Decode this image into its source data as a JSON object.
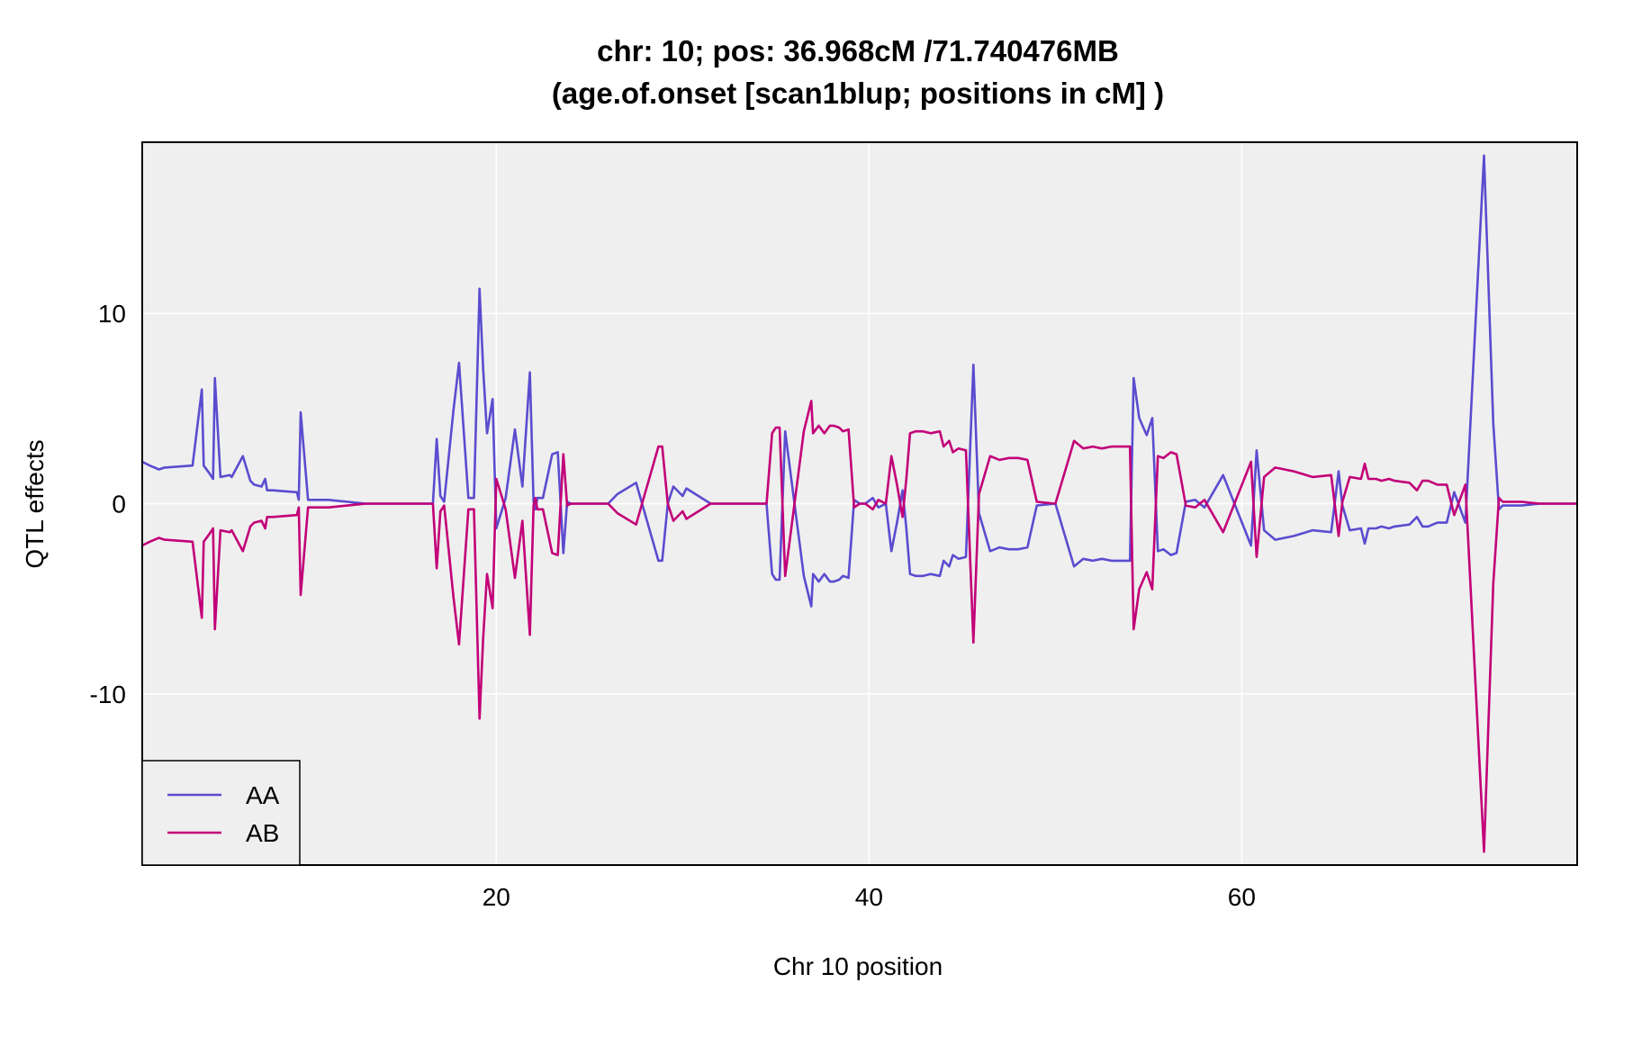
{
  "chart_data": {
    "type": "line",
    "title_line1": "chr: 10; pos: 36.968cM /71.740476MB",
    "title_line2": "(age.of.onset [scan1blup; positions in cM] )",
    "xlabel": "Chr 10 position",
    "ylabel": "QTL effects",
    "xlim": [
      1,
      78
    ],
    "ylim": [
      -19,
      19
    ],
    "xticks": [
      20,
      40,
      60
    ],
    "yticks": [
      -10,
      0,
      10
    ],
    "grid": true,
    "legend_position": "bottom-left",
    "background": "#efefef",
    "series": [
      {
        "name": "AA",
        "color": "#5b4ccf",
        "x": [
          1.0,
          1.4,
          1.9,
          2.2,
          3.7,
          4.2,
          4.3,
          4.6,
          4.8,
          4.9,
          5.2,
          5.7,
          5.8,
          6.4,
          6.8,
          7.0,
          7.4,
          7.6,
          7.7,
          7.8,
          7.8,
          8.0,
          9.3,
          9.4,
          9.5,
          9.9,
          10.5,
          11.0,
          12.0,
          13.0,
          14.0,
          15.0,
          16.0,
          16.4,
          16.6,
          16.8,
          17.0,
          17.2,
          17.7,
          18.0,
          18.5,
          18.8,
          19.1,
          19.3,
          19.5,
          19.8,
          20.0,
          20.5,
          21.0,
          21.4,
          21.8,
          22.0,
          22.1,
          22.2,
          22.5,
          23.0,
          23.3,
          23.6,
          23.8,
          24.0,
          26.0,
          26.5,
          27.5,
          28.7,
          28.9,
          29.2,
          29.5,
          30.0,
          30.2,
          31.5,
          34.5,
          34.8,
          35.0,
          35.2,
          35.5,
          36.5,
          36.9,
          37.0,
          37.3,
          37.6,
          37.9,
          38.1,
          38.4,
          38.6,
          38.9,
          39.2,
          39.5,
          39.8,
          40.2,
          40.5,
          40.9,
          41.2,
          41.5,
          41.8,
          42.0,
          42.2,
          42.5,
          42.9,
          43.3,
          43.8,
          44.0,
          44.2,
          44.3,
          44.5,
          44.8,
          45.2,
          45.6,
          45.9,
          46.5,
          47.0,
          47.5,
          48.0,
          48.5,
          49.0,
          50.0,
          51.0,
          51.5,
          52.0,
          52.5,
          53.0,
          54.0,
          54.2,
          54.5,
          54.9,
          55.2,
          55.5,
          55.8,
          56.2,
          56.5,
          57.0,
          57.5,
          58.0,
          59.0,
          60.5,
          60.8,
          61.2,
          61.8,
          62.8,
          63.8,
          64.8,
          65.2,
          65.4,
          65.8,
          66.4,
          66.6,
          66.8,
          67.2,
          67.5,
          67.9,
          68.2,
          69.0,
          69.4,
          69.7,
          70.0,
          70.5,
          71.0,
          71.4,
          72.0,
          73.0,
          73.5,
          73.8,
          74.0,
          75.0,
          76.0,
          77.0,
          78.0
        ],
        "y": [
          2.2,
          2.0,
          1.8,
          1.9,
          2.0,
          6.0,
          2.0,
          1.6,
          1.3,
          6.6,
          1.4,
          1.5,
          1.4,
          2.5,
          1.2,
          1.0,
          0.9,
          1.3,
          0.7,
          0.7,
          0.7,
          0.7,
          0.6,
          0.2,
          4.8,
          0.2,
          0.2,
          0.2,
          0.1,
          0.0,
          0.0,
          0.0,
          0.0,
          0.0,
          0.0,
          3.4,
          0.4,
          0.1,
          4.9,
          7.4,
          0.3,
          0.3,
          11.3,
          7.0,
          3.7,
          5.5,
          -1.3,
          0.3,
          3.9,
          0.9,
          6.9,
          0.1,
          -0.3,
          0.3,
          0.3,
          2.6,
          2.7,
          -2.6,
          0.1,
          0.0,
          0.0,
          0.5,
          1.1,
          -3.0,
          -3.0,
          0.0,
          0.9,
          0.4,
          0.8,
          0.0,
          0.0,
          -3.7,
          -4.0,
          -4.0,
          3.8,
          -3.8,
          -5.4,
          -3.7,
          -4.1,
          -3.7,
          -4.1,
          -4.1,
          -4.0,
          -3.8,
          -3.9,
          0.2,
          0.0,
          0.0,
          0.3,
          -0.2,
          0.0,
          -2.5,
          -1.0,
          0.7,
          -1.3,
          -3.7,
          -3.8,
          -3.8,
          -3.7,
          -3.8,
          -3.0,
          -3.2,
          -3.3,
          -2.7,
          -2.9,
          -2.8,
          7.3,
          -0.5,
          -2.5,
          -2.3,
          -2.4,
          -2.4,
          -2.3,
          -0.1,
          0.0,
          -3.3,
          -2.9,
          -3.0,
          -2.9,
          -3.0,
          -3.0,
          6.6,
          4.5,
          3.6,
          4.5,
          -2.5,
          -2.4,
          -2.7,
          -2.6,
          0.1,
          0.2,
          -0.2,
          1.5,
          -2.2,
          2.8,
          -1.4,
          -1.9,
          -1.7,
          -1.4,
          -1.5,
          1.7,
          -0.1,
          -1.4,
          -1.3,
          -2.1,
          -1.3,
          -1.3,
          -1.2,
          -1.3,
          -1.2,
          -1.1,
          -0.7,
          -1.2,
          -1.2,
          -1.0,
          -1.0,
          0.6,
          -1.0,
          18.3,
          4.2,
          -0.3,
          -0.1,
          -0.1,
          0.0,
          0.0,
          0.0
        ]
      },
      {
        "name": "AB",
        "color": "#c20078",
        "x": [
          1.0,
          1.4,
          1.9,
          2.2,
          3.7,
          4.2,
          4.3,
          4.6,
          4.8,
          4.9,
          5.2,
          5.7,
          5.8,
          6.4,
          6.8,
          7.0,
          7.4,
          7.6,
          7.7,
          7.8,
          7.8,
          8.0,
          9.3,
          9.4,
          9.5,
          9.9,
          10.5,
          11.0,
          12.0,
          13.0,
          14.0,
          15.0,
          16.0,
          16.4,
          16.6,
          16.8,
          17.0,
          17.2,
          17.7,
          18.0,
          18.5,
          18.8,
          19.1,
          19.3,
          19.5,
          19.8,
          20.0,
          20.5,
          21.0,
          21.4,
          21.8,
          22.0,
          22.1,
          22.2,
          22.5,
          23.0,
          23.3,
          23.6,
          23.8,
          24.0,
          26.0,
          26.5,
          27.5,
          28.7,
          28.9,
          29.2,
          29.5,
          30.0,
          30.2,
          31.5,
          34.5,
          34.8,
          35.0,
          35.2,
          35.5,
          36.5,
          36.9,
          37.0,
          37.3,
          37.6,
          37.9,
          38.1,
          38.4,
          38.6,
          38.9,
          39.2,
          39.5,
          39.8,
          40.2,
          40.5,
          40.9,
          41.2,
          41.5,
          41.8,
          42.0,
          42.2,
          42.5,
          42.9,
          43.3,
          43.8,
          44.0,
          44.2,
          44.3,
          44.5,
          44.8,
          45.2,
          45.6,
          45.9,
          46.5,
          47.0,
          47.5,
          48.0,
          48.5,
          49.0,
          50.0,
          51.0,
          51.5,
          52.0,
          52.5,
          53.0,
          54.0,
          54.2,
          54.5,
          54.9,
          55.2,
          55.5,
          55.8,
          56.2,
          56.5,
          57.0,
          57.5,
          58.0,
          59.0,
          60.5,
          60.8,
          61.2,
          61.8,
          62.8,
          63.8,
          64.8,
          65.2,
          65.4,
          65.8,
          66.4,
          66.6,
          66.8,
          67.2,
          67.5,
          67.9,
          68.2,
          69.0,
          69.4,
          69.7,
          70.0,
          70.5,
          71.0,
          71.4,
          72.0,
          73.0,
          73.5,
          73.8,
          74.0,
          75.0,
          76.0,
          77.0,
          78.0
        ],
        "y": [
          -2.2,
          -2.0,
          -1.8,
          -1.9,
          -2.0,
          -6.0,
          -2.0,
          -1.6,
          -1.3,
          -6.6,
          -1.4,
          -1.5,
          -1.4,
          -2.5,
          -1.2,
          -1.0,
          -0.9,
          -1.3,
          -0.7,
          -0.7,
          -0.7,
          -0.7,
          -0.6,
          -0.2,
          -4.8,
          -0.2,
          -0.2,
          -0.2,
          -0.1,
          0.0,
          0.0,
          0.0,
          0.0,
          0.0,
          0.0,
          -3.4,
          -0.4,
          -0.1,
          -4.9,
          -7.4,
          -0.3,
          -0.3,
          -11.3,
          -7.0,
          -3.7,
          -5.5,
          1.3,
          -0.3,
          -3.9,
          -0.9,
          -6.9,
          -0.1,
          0.3,
          -0.3,
          -0.3,
          -2.6,
          -2.7,
          2.6,
          -0.1,
          0.0,
          0.0,
          -0.5,
          -1.1,
          3.0,
          3.0,
          0.0,
          -0.9,
          -0.4,
          -0.8,
          0.0,
          0.0,
          3.7,
          4.0,
          4.0,
          -3.8,
          3.8,
          5.4,
          3.7,
          4.1,
          3.7,
          4.1,
          4.1,
          4.0,
          3.8,
          3.9,
          -0.2,
          0.0,
          0.0,
          -0.3,
          0.2,
          0.0,
          2.5,
          1.0,
          -0.7,
          1.3,
          3.7,
          3.8,
          3.8,
          3.7,
          3.8,
          3.0,
          3.2,
          3.3,
          2.7,
          2.9,
          2.8,
          -7.3,
          0.5,
          2.5,
          2.3,
          2.4,
          2.4,
          2.3,
          0.1,
          0.0,
          3.3,
          2.9,
          3.0,
          2.9,
          3.0,
          3.0,
          -6.6,
          -4.5,
          -3.6,
          -4.5,
          2.5,
          2.4,
          2.7,
          2.6,
          -0.1,
          -0.2,
          0.2,
          -1.5,
          2.2,
          -2.8,
          1.4,
          1.9,
          1.7,
          1.4,
          1.5,
          -1.7,
          0.1,
          1.4,
          1.3,
          2.1,
          1.3,
          1.3,
          1.2,
          1.3,
          1.2,
          1.1,
          0.7,
          1.2,
          1.2,
          1.0,
          1.0,
          -0.6,
          1.0,
          -18.3,
          -4.2,
          0.3,
          0.1,
          0.1,
          0.0,
          0.0,
          0.0
        ]
      }
    ]
  }
}
